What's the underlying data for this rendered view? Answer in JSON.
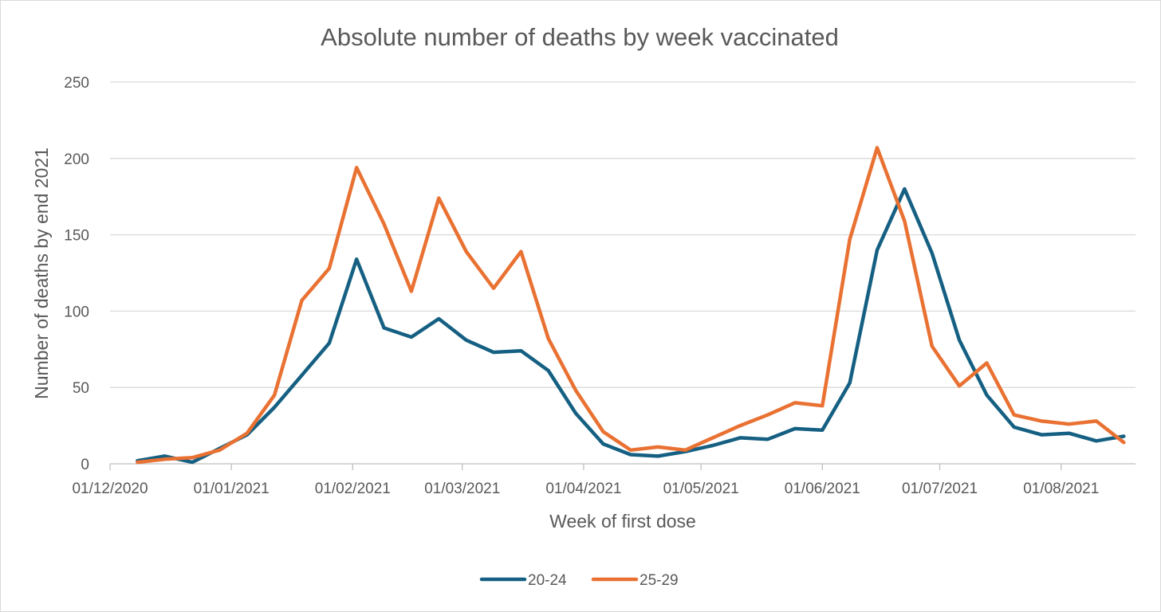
{
  "chart_data": {
    "type": "line",
    "title": "Absolute number of deaths by week vaccinated",
    "xlabel": "Week of first dose",
    "ylabel": "Number of deaths by end 2021",
    "x_tick_labels": [
      "01/12/2020",
      "01/01/2021",
      "01/02/2021",
      "01/03/2021",
      "01/04/2021",
      "01/05/2021",
      "01/06/2021",
      "01/07/2021",
      "01/08/2021"
    ],
    "y_tick_labels": [
      "0",
      "50",
      "100",
      "150",
      "200",
      "250"
    ],
    "ylim": [
      0,
      250
    ],
    "xlim": [
      "2020-12-01",
      "2021-08-20"
    ],
    "grid": true,
    "legend_position": "bottom",
    "x": [
      "2020-12-08",
      "2020-12-15",
      "2020-12-22",
      "2020-12-29",
      "2021-01-05",
      "2021-01-12",
      "2021-01-19",
      "2021-01-26",
      "2021-02-02",
      "2021-02-09",
      "2021-02-16",
      "2021-02-23",
      "2021-03-02",
      "2021-03-09",
      "2021-03-16",
      "2021-03-23",
      "2021-03-30",
      "2021-04-06",
      "2021-04-13",
      "2021-04-20",
      "2021-04-27",
      "2021-05-04",
      "2021-05-11",
      "2021-05-18",
      "2021-05-25",
      "2021-06-01",
      "2021-06-08",
      "2021-06-15",
      "2021-06-22",
      "2021-06-29",
      "2021-07-06",
      "2021-07-13",
      "2021-07-20",
      "2021-07-27",
      "2021-08-03",
      "2021-08-10",
      "2021-08-17"
    ],
    "series": [
      {
        "name": "20-24",
        "color": "#156082",
        "values": [
          2,
          5,
          1,
          10,
          19,
          37,
          58,
          79,
          134,
          89,
          83,
          95,
          81,
          73,
          74,
          61,
          33,
          13,
          6,
          5,
          8,
          12,
          17,
          16,
          23,
          22,
          53,
          140,
          180,
          138,
          81,
          45,
          24,
          19,
          20,
          15,
          18
        ]
      },
      {
        "name": "25-29",
        "color": "#E97132",
        "values": [
          1,
          3,
          4,
          9,
          20,
          45,
          107,
          128,
          194,
          157,
          113,
          174,
          139,
          115,
          139,
          82,
          48,
          21,
          9,
          11,
          9,
          17,
          25,
          32,
          40,
          38,
          147,
          207,
          159,
          77,
          51,
          66,
          32,
          28,
          26,
          28,
          14
        ]
      }
    ]
  }
}
